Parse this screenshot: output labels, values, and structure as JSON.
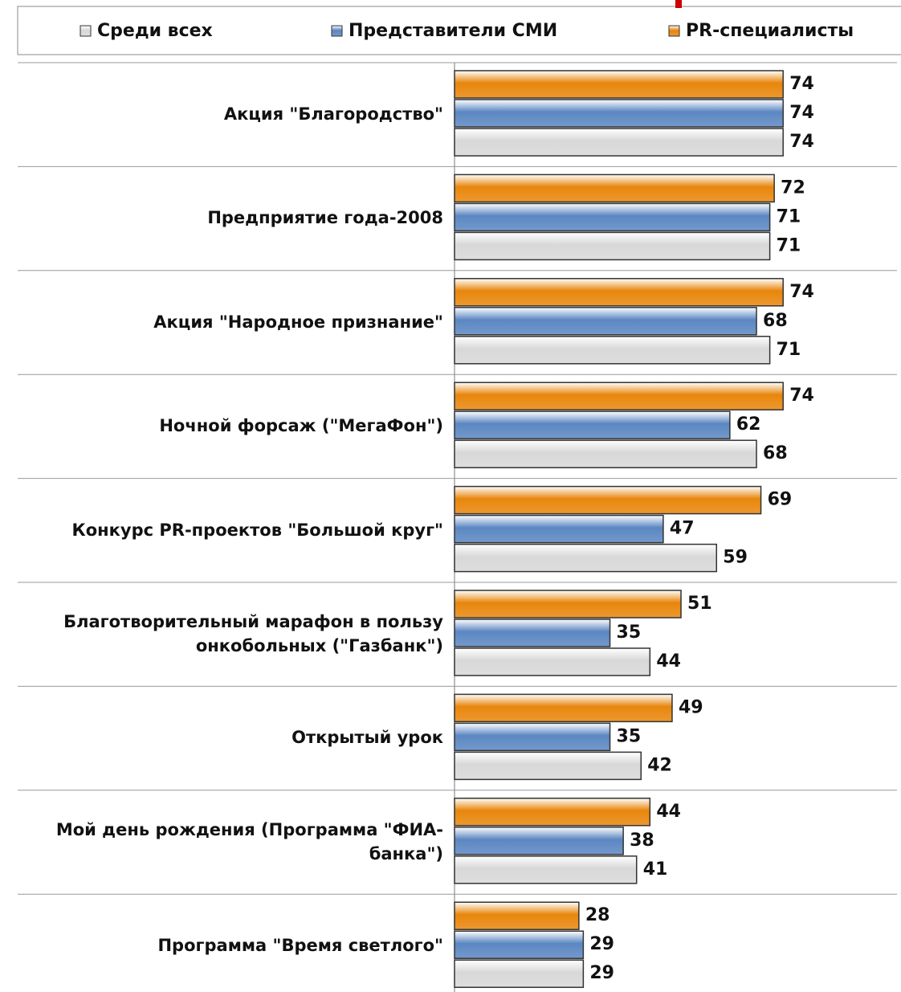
{
  "chart_data": {
    "type": "bar",
    "orientation": "horizontal",
    "categories": [
      "Акция \"Благородство\"",
      "Предприятие года-2008",
      "Акция \"Народное признание\"",
      "Ночной форсаж (\"МегаФон\")",
      "Конкурс PR-проектов \"Большой круг\"",
      "Благотворительный марафон в пользу онкобольных (\"Газбанк\")",
      "Открытый урок",
      "Мой день рождения (Программа \"ФИА-банка\")",
      "Программа \"Время светлого\""
    ],
    "series": [
      {
        "name": "Среди всех",
        "color": "#d8d8d8",
        "values": [
          74,
          71,
          71,
          68,
          59,
          44,
          42,
          41,
          29
        ]
      },
      {
        "name": "Представители СМИ",
        "color": "#5b87c2",
        "values": [
          74,
          71,
          68,
          62,
          47,
          35,
          35,
          38,
          29
        ]
      },
      {
        "name": "PR-специалисты",
        "color": "#e8860c",
        "values": [
          74,
          72,
          74,
          74,
          69,
          51,
          49,
          44,
          28
        ]
      }
    ],
    "xlim": [
      0,
      100
    ],
    "legend": "top"
  }
}
